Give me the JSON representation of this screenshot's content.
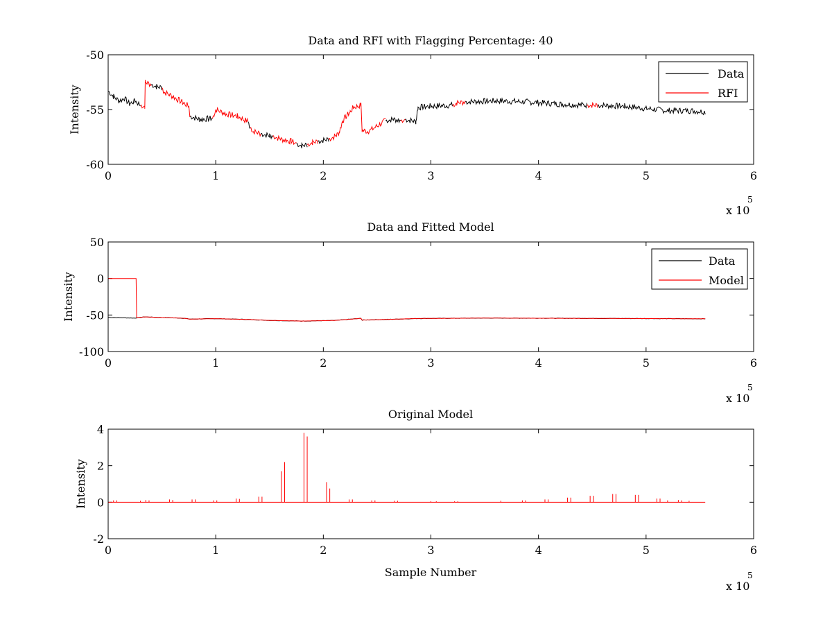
{
  "chart_data": [
    {
      "type": "line",
      "title": "Data and RFI with Flagging Percentage: 40",
      "xlabel": "",
      "ylabel": "Intensity",
      "xlim": [
        0,
        6
      ],
      "ylim": [
        -60,
        -50
      ],
      "xticks": [
        "0",
        "1",
        "2",
        "3",
        "4",
        "5",
        "6"
      ],
      "yticks": [
        "-60",
        "-55",
        "-50"
      ],
      "x_multiplier_text": "x 10",
      "x_multiplier_exp": "5",
      "legend": [
        "Data",
        "RFI"
      ],
      "legend_position": "top-right",
      "colors": {
        "Data": "#000000",
        "RFI": "#ff0000"
      },
      "segments": [
        {
          "series": "Data",
          "points": [
            [
              0.0,
              -53.3
            ],
            [
              0.05,
              -53.8
            ],
            [
              0.1,
              -54.2
            ],
            [
              0.15,
              -54.0
            ],
            [
              0.2,
              -54.5
            ],
            [
              0.25,
              -54.2
            ],
            [
              0.3,
              -54.6
            ]
          ]
        },
        {
          "series": "RFI",
          "points": [
            [
              0.3,
              -54.6
            ],
            [
              0.34,
              -54.7
            ],
            [
              0.345,
              -52.5
            ],
            [
              0.4,
              -52.7
            ]
          ]
        },
        {
          "series": "Data",
          "points": [
            [
              0.4,
              -52.7
            ],
            [
              0.45,
              -52.9
            ],
            [
              0.5,
              -53.0
            ]
          ]
        },
        {
          "series": "RFI",
          "points": [
            [
              0.5,
              -53.0
            ],
            [
              0.52,
              -53.4
            ],
            [
              0.6,
              -53.8
            ],
            [
              0.7,
              -54.4
            ],
            [
              0.75,
              -54.7
            ],
            [
              0.76,
              -55.6
            ]
          ]
        },
        {
          "series": "Data",
          "points": [
            [
              0.76,
              -55.6
            ],
            [
              0.85,
              -55.9
            ],
            [
              0.97,
              -55.8
            ]
          ]
        },
        {
          "series": "RFI",
          "points": [
            [
              0.97,
              -55.8
            ],
            [
              1.0,
              -55.0
            ],
            [
              1.1,
              -55.4
            ],
            [
              1.2,
              -55.6
            ],
            [
              1.3,
              -56.1
            ]
          ]
        },
        {
          "series": "Data",
          "points": [
            [
              1.3,
              -56.1
            ],
            [
              1.32,
              -56.6
            ]
          ]
        },
        {
          "series": "RFI",
          "points": [
            [
              1.32,
              -56.6
            ],
            [
              1.35,
              -57.0
            ],
            [
              1.42,
              -57.2
            ]
          ]
        },
        {
          "series": "Data",
          "points": [
            [
              1.42,
              -57.2
            ],
            [
              1.5,
              -57.4
            ],
            [
              1.53,
              -57.4
            ]
          ]
        },
        {
          "series": "RFI",
          "points": [
            [
              1.53,
              -57.4
            ],
            [
              1.6,
              -57.7
            ],
            [
              1.7,
              -57.9
            ],
            [
              1.75,
              -58.1
            ]
          ]
        },
        {
          "series": "Data",
          "points": [
            [
              1.75,
              -58.1
            ],
            [
              1.8,
              -58.3
            ],
            [
              1.85,
              -58.2
            ]
          ]
        },
        {
          "series": "RFI",
          "points": [
            [
              1.85,
              -58.2
            ],
            [
              1.9,
              -58.0
            ],
            [
              1.95,
              -57.9
            ]
          ]
        },
        {
          "series": "Data",
          "points": [
            [
              1.95,
              -57.9
            ],
            [
              2.05,
              -57.7
            ]
          ]
        },
        {
          "series": "RFI",
          "points": [
            [
              2.05,
              -57.7
            ],
            [
              2.12,
              -57.4
            ],
            [
              2.15,
              -57.0
            ],
            [
              2.18,
              -56.0
            ],
            [
              2.25,
              -55.2
            ],
            [
              2.28,
              -54.8
            ],
            [
              2.35,
              -54.6
            ],
            [
              2.36,
              -56.9
            ],
            [
              2.42,
              -57.0
            ],
            [
              2.5,
              -56.5
            ],
            [
              2.58,
              -56.0
            ]
          ]
        },
        {
          "series": "Data",
          "points": [
            [
              2.58,
              -56.0
            ],
            [
              2.65,
              -55.9
            ],
            [
              2.72,
              -56.0
            ]
          ]
        },
        {
          "series": "RFI",
          "points": [
            [
              2.72,
              -56.0
            ],
            [
              2.76,
              -55.9
            ]
          ]
        },
        {
          "series": "Data",
          "points": [
            [
              2.76,
              -55.9
            ],
            [
              2.86,
              -56.1
            ],
            [
              2.88,
              -54.8
            ],
            [
              3.0,
              -54.7
            ],
            [
              3.2,
              -54.6
            ]
          ]
        },
        {
          "series": "RFI",
          "points": [
            [
              3.2,
              -54.6
            ],
            [
              3.24,
              -54.4
            ],
            [
              3.32,
              -54.3
            ]
          ]
        },
        {
          "series": "Data",
          "points": [
            [
              3.32,
              -54.3
            ],
            [
              3.6,
              -54.2
            ],
            [
              3.9,
              -54.3
            ],
            [
              4.2,
              -54.5
            ],
            [
              4.45,
              -54.6
            ]
          ]
        },
        {
          "series": "RFI",
          "points": [
            [
              4.45,
              -54.6
            ],
            [
              4.55,
              -54.6
            ]
          ]
        },
        {
          "series": "Data",
          "points": [
            [
              4.55,
              -54.6
            ],
            [
              4.8,
              -54.7
            ],
            [
              5.0,
              -54.9
            ],
            [
              5.2,
              -55.1
            ],
            [
              5.4,
              -55.1
            ],
            [
              5.55,
              -55.2
            ]
          ]
        }
      ]
    },
    {
      "type": "line",
      "title": "Data and Fitted Model",
      "xlabel": "",
      "ylabel": "Intensity",
      "xlim": [
        0,
        6
      ],
      "ylim": [
        -100,
        50
      ],
      "xticks": [
        "0",
        "1",
        "2",
        "3",
        "4",
        "5",
        "6"
      ],
      "yticks": [
        "-100",
        "-50",
        "0",
        "50"
      ],
      "x_multiplier_text": "x 10",
      "x_multiplier_exp": "5",
      "legend": [
        "Data",
        "Model"
      ],
      "legend_position": "top-right",
      "colors": {
        "Data": "#000000",
        "Model": "#ff0000"
      },
      "series": [
        {
          "name": "Data",
          "points": [
            [
              0.0,
              -53.3
            ],
            [
              0.25,
              -54.2
            ],
            [
              0.34,
              -52.6
            ],
            [
              0.7,
              -54.4
            ],
            [
              0.76,
              -55.6
            ],
            [
              1.0,
              -55.0
            ],
            [
              1.3,
              -56.1
            ],
            [
              1.5,
              -57.4
            ],
            [
              1.8,
              -58.3
            ],
            [
              2.1,
              -57.5
            ],
            [
              2.35,
              -54.6
            ],
            [
              2.36,
              -56.9
            ],
            [
              2.6,
              -56.0
            ],
            [
              2.88,
              -54.8
            ],
            [
              3.5,
              -54.2
            ],
            [
              4.2,
              -54.5
            ],
            [
              5.0,
              -54.9
            ],
            [
              5.55,
              -55.2
            ]
          ]
        },
        {
          "name": "Model",
          "points": [
            [
              0.0,
              0
            ],
            [
              0.26,
              0
            ],
            [
              0.265,
              -53.5
            ],
            [
              0.34,
              -52.6
            ],
            [
              0.7,
              -54.4
            ],
            [
              0.76,
              -55.6
            ],
            [
              1.0,
              -55.0
            ],
            [
              1.3,
              -56.1
            ],
            [
              1.5,
              -57.4
            ],
            [
              1.8,
              -58.3
            ],
            [
              2.1,
              -57.5
            ],
            [
              2.35,
              -54.6
            ],
            [
              2.36,
              -56.9
            ],
            [
              2.6,
              -56.0
            ],
            [
              2.88,
              -54.8
            ],
            [
              3.5,
              -54.2
            ],
            [
              4.2,
              -54.5
            ],
            [
              5.0,
              -54.9
            ],
            [
              5.55,
              -55.2
            ]
          ]
        }
      ]
    },
    {
      "type": "line",
      "title": "Original Model",
      "xlabel": "Sample Number",
      "ylabel": "Intensity",
      "xlim": [
        0,
        6
      ],
      "ylim": [
        -2,
        4
      ],
      "xticks": [
        "0",
        "1",
        "2",
        "3",
        "4",
        "5",
        "6"
      ],
      "yticks": [
        "-2",
        "0",
        "2",
        "4"
      ],
      "x_multiplier_text": "x 10",
      "x_multiplier_exp": "5",
      "color": "#ff0000",
      "x_end": 5.55,
      "spikes": [
        [
          0.05,
          0.1
        ],
        [
          0.08,
          0.1
        ],
        [
          0.3,
          0.08
        ],
        [
          0.35,
          0.12
        ],
        [
          0.38,
          0.1
        ],
        [
          0.57,
          0.15
        ],
        [
          0.6,
          0.12
        ],
        [
          0.78,
          0.15
        ],
        [
          0.81,
          0.15
        ],
        [
          0.98,
          0.1
        ],
        [
          1.01,
          0.1
        ],
        [
          1.19,
          0.2
        ],
        [
          1.22,
          0.18
        ],
        [
          1.4,
          0.3
        ],
        [
          1.43,
          0.3
        ],
        [
          1.61,
          1.7
        ],
        [
          1.64,
          2.2
        ],
        [
          1.82,
          3.8
        ],
        [
          1.85,
          3.6
        ],
        [
          2.03,
          1.1
        ],
        [
          2.06,
          0.75
        ],
        [
          2.24,
          0.15
        ],
        [
          2.27,
          0.15
        ],
        [
          2.45,
          0.1
        ],
        [
          2.48,
          0.1
        ],
        [
          2.66,
          0.08
        ],
        [
          2.69,
          0.08
        ],
        [
          3.0,
          0.05
        ],
        [
          3.05,
          0.05
        ],
        [
          3.22,
          0.05
        ],
        [
          3.25,
          0.05
        ],
        [
          3.65,
          0.08
        ],
        [
          3.85,
          0.1
        ],
        [
          3.88,
          0.1
        ],
        [
          4.06,
          0.15
        ],
        [
          4.09,
          0.15
        ],
        [
          4.27,
          0.25
        ],
        [
          4.3,
          0.25
        ],
        [
          4.48,
          0.35
        ],
        [
          4.51,
          0.35
        ],
        [
          4.69,
          0.45
        ],
        [
          4.72,
          0.45
        ],
        [
          4.9,
          0.4
        ],
        [
          4.93,
          0.4
        ],
        [
          5.1,
          0.2
        ],
        [
          5.13,
          0.2
        ],
        [
          5.2,
          0.1
        ],
        [
          5.3,
          0.12
        ],
        [
          5.33,
          0.1
        ],
        [
          5.4,
          0.08
        ]
      ]
    }
  ]
}
